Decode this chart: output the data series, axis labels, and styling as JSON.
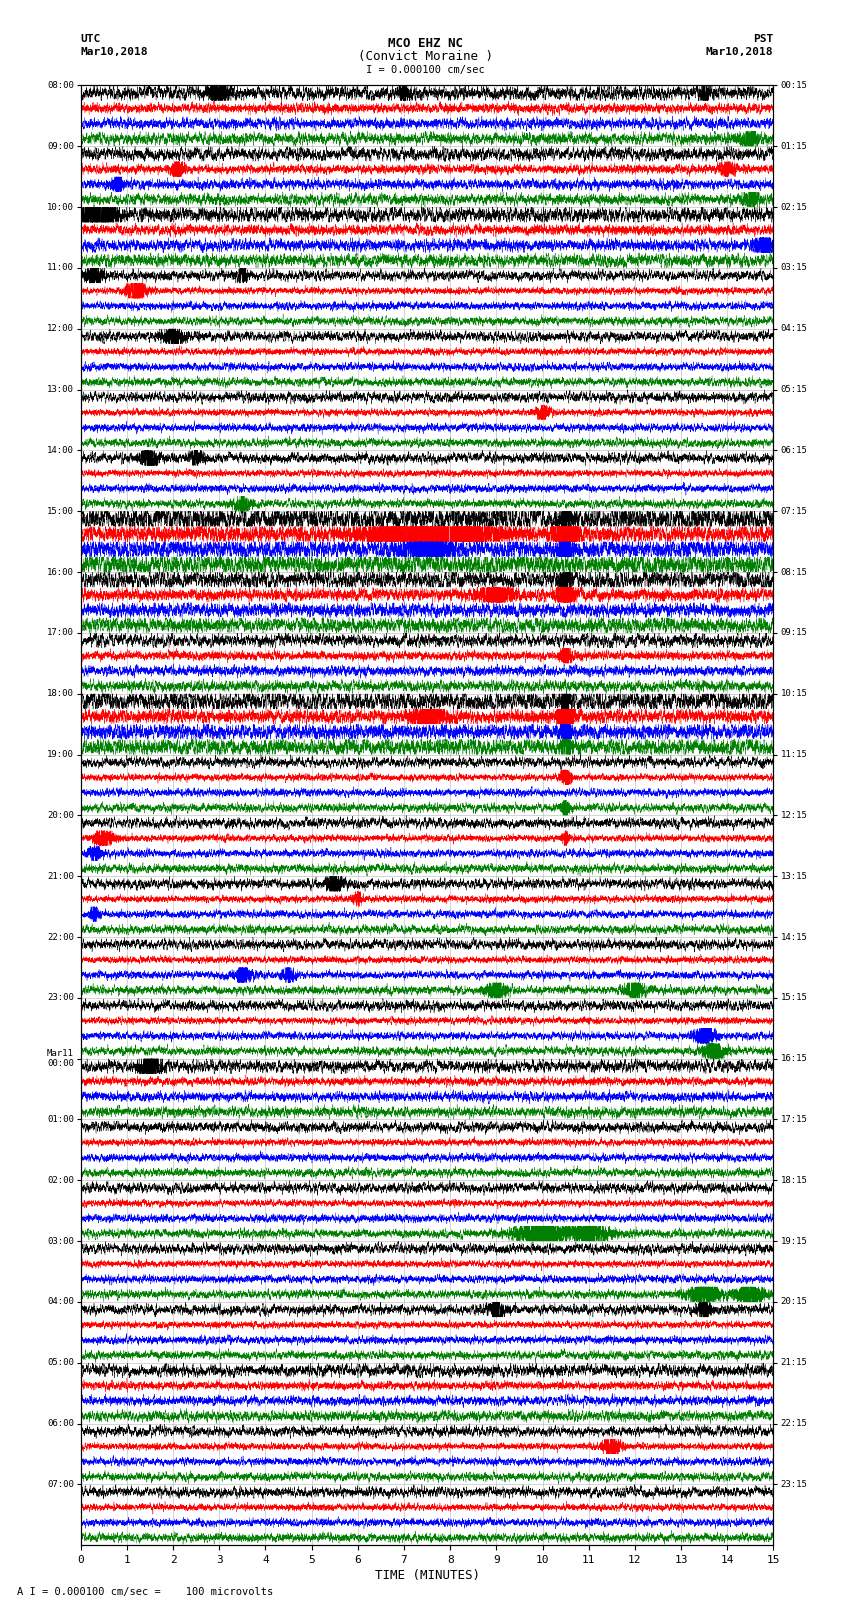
{
  "title_line1": "MCO EHZ NC",
  "title_line2": "(Convict Moraine )",
  "scale_text": "I = 0.000100 cm/sec",
  "footer_text": "A I = 0.000100 cm/sec =    100 microvolts",
  "utc_label": "UTC",
  "utc_date": "Mar10,2018",
  "pst_label": "PST",
  "pst_date": "Mar10,2018",
  "xlabel": "TIME (MINUTES)",
  "time_min": 0,
  "time_max": 15,
  "background_color": "#ffffff",
  "grid_color": "#aaaaaa",
  "trace_colors": [
    "black",
    "red",
    "blue",
    "green"
  ],
  "left_times_utc": [
    "08:00",
    "09:00",
    "10:00",
    "11:00",
    "12:00",
    "13:00",
    "14:00",
    "15:00",
    "16:00",
    "17:00",
    "18:00",
    "19:00",
    "20:00",
    "21:00",
    "22:00",
    "23:00",
    "Mar11\n00:00",
    "01:00",
    "02:00",
    "03:00",
    "04:00",
    "05:00",
    "06:00",
    "07:00"
  ],
  "right_times_pst": [
    "00:15",
    "01:15",
    "02:15",
    "03:15",
    "04:15",
    "05:15",
    "06:15",
    "07:15",
    "08:15",
    "09:15",
    "10:15",
    "11:15",
    "12:15",
    "13:15",
    "14:15",
    "15:15",
    "16:15",
    "17:15",
    "18:15",
    "19:15",
    "20:15",
    "21:15",
    "22:15",
    "23:15"
  ],
  "num_rows": 24,
  "traces_per_row": 4,
  "seed": 42,
  "big_event_time": 10.5,
  "big_event_rows": [
    6,
    7,
    8,
    9,
    10,
    11,
    12,
    13,
    14,
    15,
    16,
    17,
    18,
    19
  ]
}
